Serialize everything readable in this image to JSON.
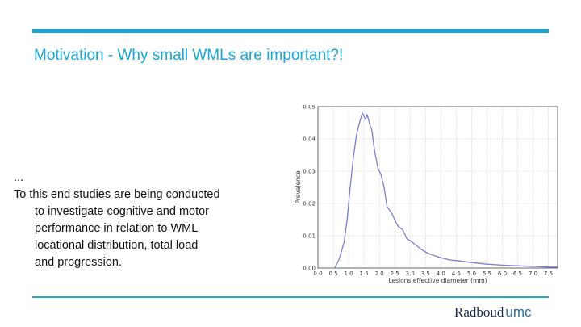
{
  "slide": {
    "title": "Motivation - Why small WMLs are important?!",
    "body_lines": [
      "...",
      "To this end studies are being conducted",
      "to investigate cognitive and motor",
      "performance in relation to WML",
      "locational distribution,  total load",
      "and  progression."
    ]
  },
  "logo": {
    "word": "Radboud",
    "suffix": "umc"
  },
  "colors": {
    "accent": "#1aa6d6",
    "line": "#7a7fd0",
    "logo_text": "#1b2a4a"
  },
  "chart_data": {
    "type": "line",
    "title": "",
    "xlabel": "Lesions effective diameter (mm)",
    "ylabel": "Prevalence",
    "xlim": [
      0,
      7.8
    ],
    "ylim": [
      0,
      0.05
    ],
    "xticks": [
      "0.0",
      "0.5",
      "1.0",
      "1.5",
      "2.0",
      "2.5",
      "3.0",
      "3.5",
      "4.0",
      "4.5",
      "5.0",
      "5.5",
      "6.0",
      "6.5",
      "7.0",
      "7.5"
    ],
    "yticks": [
      "0.00",
      "0.01",
      "0.02",
      "0.03",
      "0.04",
      "0.05"
    ],
    "grid": true,
    "series": [
      {
        "x": [
          0.55,
          0.7,
          0.85,
          0.95,
          1.05,
          1.15,
          1.25,
          1.35,
          1.45,
          1.5,
          1.55,
          1.6,
          1.65,
          1.7,
          1.75,
          1.85,
          1.95,
          2.05,
          2.15,
          2.25,
          2.4,
          2.5,
          2.6,
          2.75,
          2.9,
          3.0,
          3.2,
          3.4,
          3.6,
          3.8,
          4.0,
          4.3,
          4.6,
          5.0,
          5.5,
          6.0,
          6.5,
          7.0,
          7.5,
          7.8
        ],
        "y": [
          0.0,
          0.003,
          0.008,
          0.015,
          0.025,
          0.034,
          0.041,
          0.045,
          0.048,
          0.047,
          0.046,
          0.0475,
          0.046,
          0.044,
          0.043,
          0.036,
          0.031,
          0.029,
          0.025,
          0.019,
          0.017,
          0.015,
          0.013,
          0.012,
          0.009,
          0.0085,
          0.007,
          0.0055,
          0.0045,
          0.0038,
          0.0032,
          0.0025,
          0.0022,
          0.0017,
          0.0012,
          0.0009,
          0.0007,
          0.0005,
          0.0003,
          0.0003
        ]
      }
    ]
  }
}
